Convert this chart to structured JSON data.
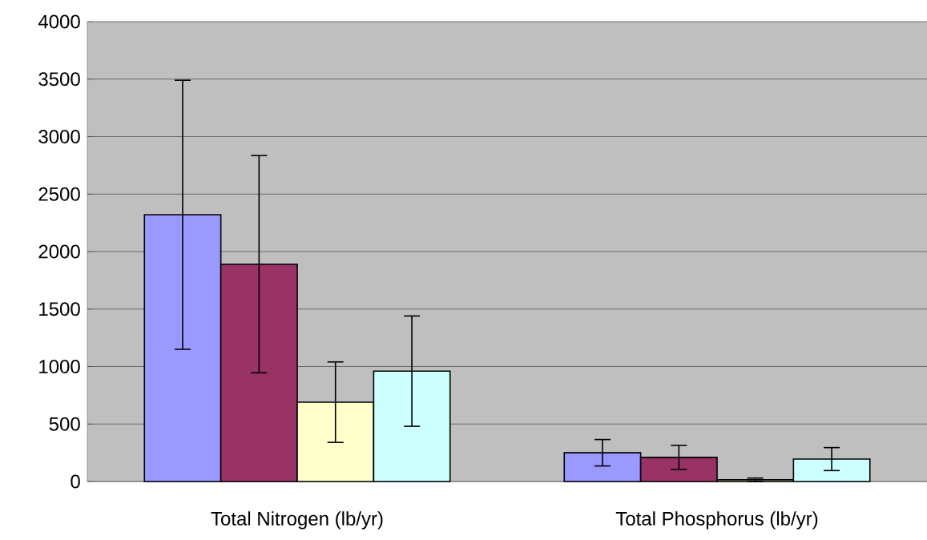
{
  "chart_data": {
    "type": "bar",
    "categories": [
      "Total Nitrogen (lb/yr)",
      "Total Phosphorus (lb/yr)"
    ],
    "series": [
      {
        "color": "#9999ff",
        "values": [
          2320,
          250
        ],
        "errors": [
          1170,
          115
        ]
      },
      {
        "color": "#993366",
        "values": [
          1890,
          210
        ],
        "errors": [
          945,
          105
        ]
      },
      {
        "color": "#ffffcc",
        "values": [
          690,
          15
        ],
        "errors": [
          350,
          15
        ]
      },
      {
        "color": "#ccffff",
        "values": [
          960,
          195
        ],
        "errors": [
          480,
          100
        ]
      }
    ],
    "ylim": [
      0,
      4000
    ],
    "yticks": [
      0,
      500,
      1000,
      1500,
      2000,
      2500,
      3000,
      3500,
      4000
    ],
    "grid": "y"
  }
}
